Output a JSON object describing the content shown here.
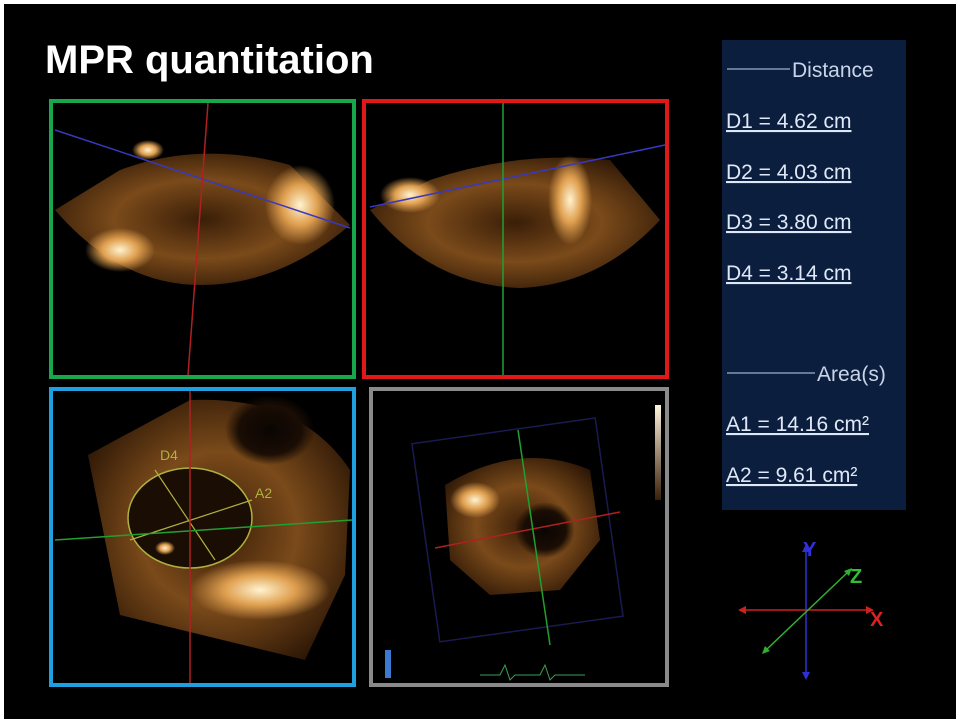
{
  "title": "MPR quantitation",
  "measurements": {
    "distance_header": "Distance",
    "distances": [
      "D1 = 4.62 cm",
      "D2 = 4.03 cm",
      "D3 = 3.80 cm",
      "D4 = 3.14 cm"
    ],
    "area_header": "Area(s)",
    "areas": [
      "A1 = 14.16 cm²",
      "A2 = 9.61 cm²"
    ]
  },
  "image_labels": [
    "D4",
    "A2"
  ],
  "axes": {
    "x": "X",
    "y": "Y",
    "z": "Z"
  }
}
